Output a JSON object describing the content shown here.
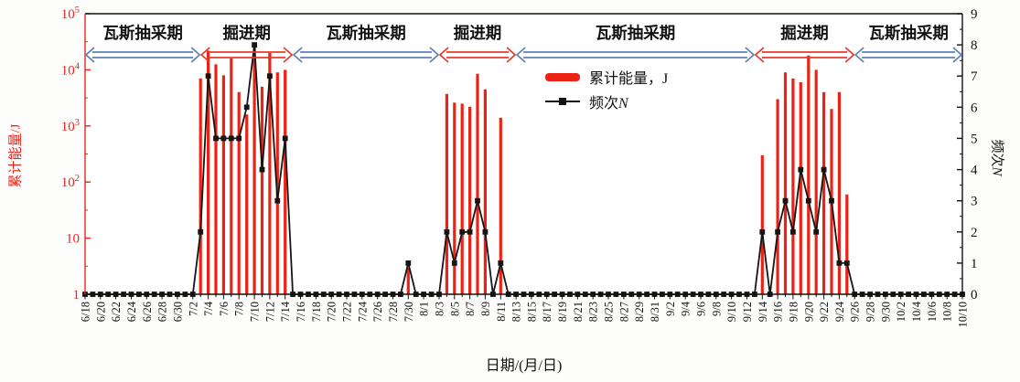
{
  "figure": {
    "x_axis": {
      "title": "日期/(月/日)",
      "start": "6/18",
      "end": "10/10",
      "tick_labels": [
        "6/18",
        "6/20",
        "6/22",
        "6/24",
        "6/26",
        "6/28",
        "6/30",
        "7/2",
        "7/4",
        "7/6",
        "7/8",
        "7/10",
        "7/12",
        "7/14",
        "7/16",
        "7/18",
        "7/20",
        "7/22",
        "7/24",
        "7/26",
        "7/28",
        "7/30",
        "8/1",
        "8/3",
        "8/5",
        "8/7",
        "8/9",
        "8/11",
        "8/13",
        "8/15",
        "8/17",
        "8/19",
        "8/21",
        "8/23",
        "8/25",
        "8/27",
        "8/29",
        "8/31",
        "9/2",
        "9/4",
        "9/6",
        "9/8",
        "9/10",
        "9/12",
        "9/14",
        "9/16",
        "9/18",
        "9/20",
        "9/22",
        "9/24",
        "9/26",
        "9/28",
        "9/30",
        "10/2",
        "10/4",
        "10/6",
        "10/8",
        "10/10"
      ]
    },
    "y_left": {
      "title": "累计能量/J",
      "scale": "log",
      "min": 1,
      "max": 100000,
      "tick_labels": [
        "1",
        "10",
        "10^2",
        "10^3",
        "10^4",
        "10^5"
      ],
      "color": "#e8251c"
    },
    "y_right": {
      "title_cn": "频次",
      "title_var": "N",
      "min": 0,
      "max": 9,
      "tick_labels": [
        "0",
        "1",
        "2",
        "3",
        "4",
        "5",
        "6",
        "7",
        "8",
        "9"
      ]
    },
    "legend": {
      "energy_label": "累计能量，J",
      "freq_label_cn": "频次",
      "freq_label_var": "N"
    },
    "periods": [
      {
        "label": "瓦斯抽采期",
        "start": "6/18",
        "end": "7/3",
        "color": "blue"
      },
      {
        "label": "掘进期",
        "start": "7/3",
        "end": "7/15",
        "color": "red"
      },
      {
        "label": "瓦斯抽采期",
        "start": "7/15",
        "end": "8/3",
        "color": "blue"
      },
      {
        "label": "掘进期",
        "start": "8/3",
        "end": "8/13",
        "color": "red"
      },
      {
        "label": "瓦斯抽采期",
        "start": "8/13",
        "end": "9/13",
        "color": "blue"
      },
      {
        "label": "掘进期",
        "start": "9/13",
        "end": "9/26",
        "color": "red"
      },
      {
        "label": "瓦斯抽采期",
        "start": "9/26",
        "end": "10/10",
        "color": "blue"
      }
    ],
    "colors": {
      "bar_red": "#ec2214",
      "axis_red": "#e8251c",
      "arrow_blue": "#5d81b4",
      "arrow_red": "#e8392b",
      "line_black": "#151515"
    }
  },
  "chart_data": {
    "type": "bar+line combo, daily series",
    "title": "",
    "xlabel": "日期/(月/日)",
    "ylabel_left": "累计能量/J (log scale, 1 to 100000)",
    "ylabel_right": "频次N (0 to 9)",
    "x_range": {
      "start": "6/18",
      "end": "10/10",
      "step_days": 1,
      "total_days": 115
    },
    "zero_fill_note": "all dates not listed in events have energy 0 and frequency 0",
    "events": [
      {
        "date": "7/3",
        "energy": 7000,
        "freq": 2
      },
      {
        "date": "7/4",
        "energy": 22000,
        "freq": 7
      },
      {
        "date": "7/5",
        "energy": 12500,
        "freq": 5
      },
      {
        "date": "7/6",
        "energy": 8000,
        "freq": 5
      },
      {
        "date": "7/7",
        "energy": 16000,
        "freq": 5
      },
      {
        "date": "7/8",
        "energy": 4000,
        "freq": 5
      },
      {
        "date": "7/9",
        "energy": 1600,
        "freq": 6
      },
      {
        "date": "7/10",
        "energy": 30000,
        "freq": 8
      },
      {
        "date": "7/11",
        "energy": 5000,
        "freq": 4
      },
      {
        "date": "7/12",
        "energy": 20000,
        "freq": 7
      },
      {
        "date": "7/13",
        "energy": 9000,
        "freq": 3
      },
      {
        "date": "7/14",
        "energy": 10000,
        "freq": 5
      },
      {
        "date": "7/30",
        "energy": 3,
        "freq": 1
      },
      {
        "date": "8/4",
        "energy": 3700,
        "freq": 2
      },
      {
        "date": "8/5",
        "energy": 2600,
        "freq": 1
      },
      {
        "date": "8/6",
        "energy": 2500,
        "freq": 2
      },
      {
        "date": "8/7",
        "energy": 2200,
        "freq": 2
      },
      {
        "date": "8/8",
        "energy": 8500,
        "freq": 3
      },
      {
        "date": "8/9",
        "energy": 4500,
        "freq": 2
      },
      {
        "date": "8/11",
        "energy": 1400,
        "freq": 1
      },
      {
        "date": "9/14",
        "energy": 300,
        "freq": 2
      },
      {
        "date": "9/16",
        "energy": 3000,
        "freq": 2
      },
      {
        "date": "9/17",
        "energy": 9000,
        "freq": 3
      },
      {
        "date": "9/18",
        "energy": 7000,
        "freq": 2
      },
      {
        "date": "9/19",
        "energy": 6000,
        "freq": 4
      },
      {
        "date": "9/20",
        "energy": 18000,
        "freq": 3
      },
      {
        "date": "9/21",
        "energy": 10000,
        "freq": 2
      },
      {
        "date": "9/22",
        "energy": 4000,
        "freq": 4
      },
      {
        "date": "9/23",
        "energy": 2000,
        "freq": 3
      },
      {
        "date": "9/24",
        "energy": 4000,
        "freq": 1
      },
      {
        "date": "9/25",
        "energy": 60,
        "freq": 1
      }
    ],
    "legend_entries": [
      "累计能量，J",
      "频次N"
    ],
    "grid": false,
    "legend_position": "upper middle, inside plot"
  }
}
